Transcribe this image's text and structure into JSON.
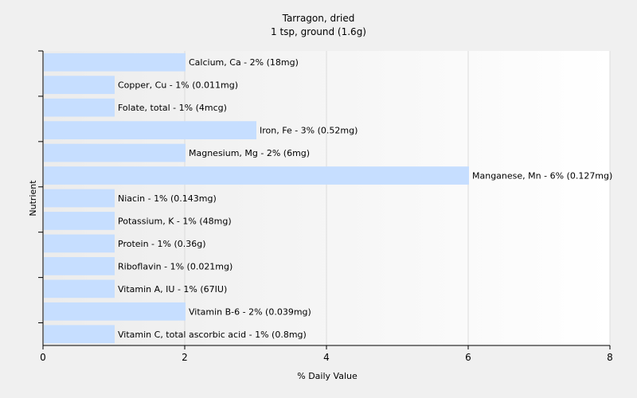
{
  "chart_data": {
    "type": "bar",
    "orientation": "horizontal",
    "title": "Tarragon, dried",
    "subtitle": "1 tsp, ground (1.6g)",
    "xlabel": "% Daily Value",
    "ylabel": "Nutrient",
    "xlim": [
      0,
      8
    ],
    "xticks": [
      0,
      2,
      4,
      6,
      8
    ],
    "grid": true,
    "bar_color": "#c6deff",
    "categories": [
      "Calcium, Ca",
      "Copper, Cu",
      "Folate, total",
      "Iron, Fe",
      "Magnesium, Mg",
      "Manganese, Mn",
      "Niacin",
      "Potassium, K",
      "Protein",
      "Riboflavin",
      "Vitamin A, IU",
      "Vitamin B-6",
      "Vitamin C, total ascorbic acid"
    ],
    "values": [
      2,
      1,
      1,
      3,
      2,
      6,
      1,
      1,
      1,
      1,
      1,
      2,
      1
    ],
    "data_labels": [
      "Calcium, Ca - 2% (18mg)",
      "Copper, Cu - 1% (0.011mg)",
      "Folate, total - 1% (4mcg)",
      "Iron, Fe - 3% (0.52mg)",
      "Magnesium, Mg - 2% (6mg)",
      "Manganese, Mn - 6% (0.127mg)",
      "Niacin - 1% (0.143mg)",
      "Potassium, K - 1% (48mg)",
      "Protein - 1% (0.36g)",
      "Riboflavin - 1% (0.021mg)",
      "Vitamin A, IU - 1% (67IU)",
      "Vitamin B-6 - 2% (0.039mg)",
      "Vitamin C, total ascorbic acid - 1% (0.8mg)"
    ]
  }
}
